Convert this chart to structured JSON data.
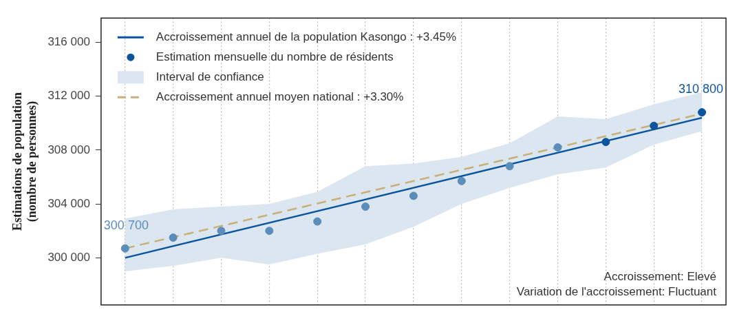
{
  "chart_data": {
    "type": "line",
    "categories": [
      null,
      null,
      null,
      null,
      null,
      null,
      null,
      null,
      null,
      null,
      null,
      null,
      null
    ],
    "ylabel": "Estimations de population\n(nombre de personnes)",
    "ylim": [
      296500,
      317800
    ],
    "yticks": [
      {
        "value": 300000,
        "label": "300 000"
      },
      {
        "value": 304000,
        "label": "304 000"
      },
      {
        "value": 308000,
        "label": "308 000"
      },
      {
        "value": 312000,
        "label": "312 000"
      },
      {
        "value": 316000,
        "label": "316 000"
      }
    ],
    "tick_labels": "y",
    "grid": "x",
    "legend": "top left",
    "series": [
      {
        "name": "Accroissement annuel de la population Kasongo : +3.45%",
        "color": "#0b559e",
        "line_style": "solid",
        "values": [
          300000,
          null,
          null,
          null,
          null,
          null,
          null,
          null,
          null,
          null,
          null,
          null,
          310400
        ]
      },
      {
        "name": "Estimation mensuelle du nombre de résidents",
        "type": "scatter",
        "marker": "circle",
        "color": "#0b559e",
        "colors": [
          "#5b8dbb",
          "#5b8dbb",
          "#5b8dbb",
          "#5b8dbb",
          "#5b8dbb",
          "#5b8dbb",
          "#5b8dbb",
          "#5b8dbb",
          "#5b8dbb",
          "#5b8dbb",
          "#0b559e",
          "#0b559e",
          "#0b559e"
        ],
        "values": [
          300700,
          301500,
          302000,
          302000,
          302700,
          303800,
          304600,
          305700,
          306800,
          308200,
          308600,
          309800,
          310800
        ],
        "value_labels": [
          "300 700",
          null,
          null,
          null,
          null,
          null,
          null,
          null,
          null,
          null,
          null,
          null,
          "310 800"
        ]
      },
      {
        "name": "Interval de confiance",
        "type": "area",
        "color": "#dce6f1",
        "values": [
          null,
          null,
          null,
          null,
          null,
          null,
          null,
          null,
          null,
          null,
          null,
          null,
          null
        ],
        "lower": [
          299000,
          299400,
          300000,
          299500,
          300300,
          301000,
          302300,
          304000,
          305200,
          306200,
          306700,
          308400,
          309400
        ],
        "upper": [
          302900,
          303600,
          303800,
          304000,
          304900,
          306800,
          307000,
          307500,
          308500,
          310500,
          310300,
          311400,
          312300
        ]
      },
      {
        "name": "Accroissement annuel moyen national : +3.30%",
        "color": "#c8b07a",
        "line_style": "dashed",
        "values": [
          300700,
          null,
          null,
          null,
          null,
          null,
          null,
          null,
          null,
          null,
          null,
          null,
          310700
        ]
      }
    ],
    "annotations": [
      "Accroissement: Elevé",
      "Variation de l'accroissement: Fluctuant"
    ]
  }
}
